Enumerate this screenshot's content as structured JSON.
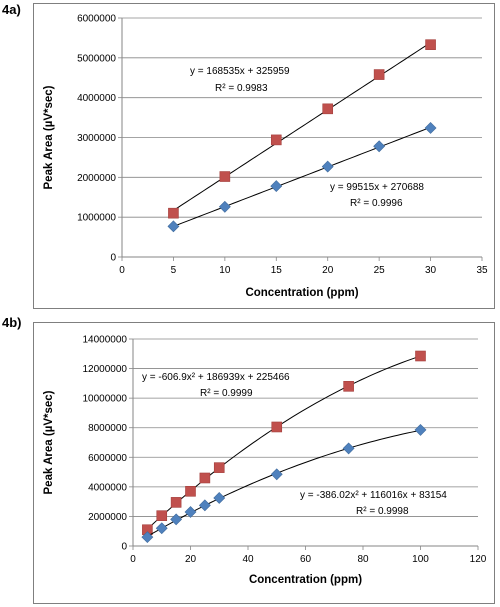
{
  "panels": [
    {
      "label": "4a)"
    },
    {
      "label": "4b)"
    }
  ],
  "chart_data": [
    {
      "type": "scatter",
      "xlabel": "Concentration (ppm)",
      "ylabel": "Peak Area (µV*sec)",
      "xlim": [
        0,
        35
      ],
      "ylim": [
        0,
        6000000
      ],
      "xticks": [
        "0",
        "5",
        "10",
        "15",
        "20",
        "25",
        "30",
        "35"
      ],
      "yticks": [
        "0",
        "1000000",
        "2000000",
        "3000000",
        "4000000",
        "5000000",
        "6000000"
      ],
      "series": [
        {
          "marker": "square",
          "color": "#c0504d",
          "x": [
            5,
            10,
            15,
            20,
            25,
            30
          ],
          "y": [
            1100000,
            2020000,
            2940000,
            3720000,
            4580000,
            5330000
          ],
          "trendline": {
            "type": "linear",
            "slope": 168535,
            "intercept": 325959
          },
          "equation": "y = 168535x + 325959",
          "r2": "R² = 0.9983"
        },
        {
          "marker": "diamond",
          "color": "#4f81bd",
          "x": [
            5,
            10,
            15,
            20,
            25,
            30
          ],
          "y": [
            770000,
            1260000,
            1780000,
            2270000,
            2780000,
            3240000
          ],
          "trendline": {
            "type": "linear",
            "slope": 99515,
            "intercept": 270688
          },
          "equation": "y = 99515x + 270688",
          "r2": "R² = 0.9996"
        }
      ],
      "grid": "horizontal"
    },
    {
      "type": "scatter",
      "xlabel": "Concentration (ppm)",
      "ylabel": "Peak Area (µV*sec)",
      "xlim": [
        0,
        120
      ],
      "ylim": [
        0,
        14000000
      ],
      "xticks": [
        "0",
        "20",
        "40",
        "60",
        "80",
        "100",
        "120"
      ],
      "yticks": [
        "0",
        "2000000",
        "4000000",
        "6000000",
        "8000000",
        "10000000",
        "12000000",
        "14000000"
      ],
      "series": [
        {
          "marker": "square",
          "color": "#c0504d",
          "x": [
            5,
            10,
            15,
            20,
            25,
            30,
            50,
            75,
            100
          ],
          "y": [
            1100000,
            2050000,
            2950000,
            3700000,
            4600000,
            5300000,
            8050000,
            10800000,
            12850000
          ],
          "trendline": {
            "type": "poly2",
            "a": -606.9,
            "b": 186939,
            "c": 225466
          },
          "equation": "y = -606.9x² + 186939x + 225466",
          "r2": "R² = 0.9999"
        },
        {
          "marker": "diamond",
          "color": "#4f81bd",
          "x": [
            5,
            10,
            15,
            20,
            25,
            30,
            50,
            75,
            100
          ],
          "y": [
            600000,
            1200000,
            1800000,
            2300000,
            2750000,
            3250000,
            4850000,
            6600000,
            7850000
          ],
          "trendline": {
            "type": "poly2",
            "a": -386.02,
            "b": 116016,
            "c": 83154
          },
          "equation": "y = -386.02x² + 116016x + 83154",
          "r2": "R² = 0.9998"
        }
      ],
      "grid": "horizontal"
    }
  ]
}
